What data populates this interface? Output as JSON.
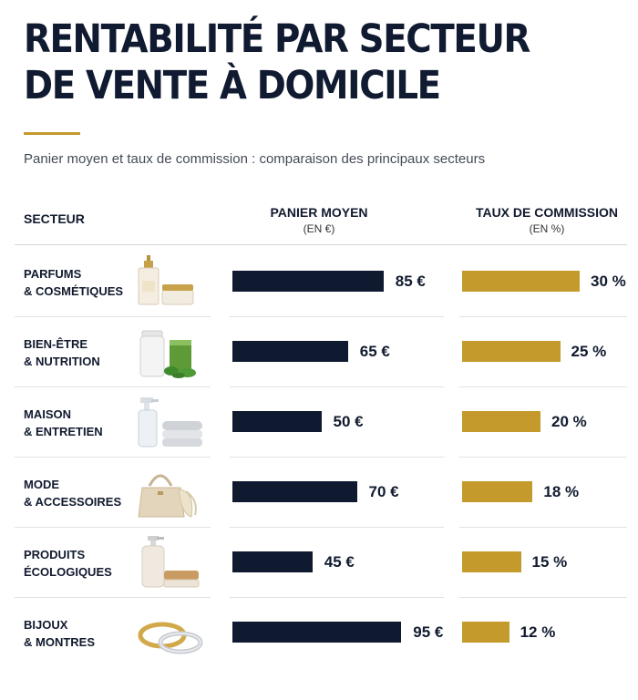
{
  "header": {
    "title_line1": "RENTABILITÉ PAR SECTEUR",
    "title_line2": "DE VENTE À DOMICILE",
    "subtitle": "Panier moyen et taux de commission : comparaison des principaux secteurs"
  },
  "columns": {
    "sector": "SECTEUR",
    "basket": "PANIER MOYEN",
    "basket_unit": "(EN €)",
    "commission": "TAUX DE COMMISSION",
    "commission_unit": "(EN %)"
  },
  "colors": {
    "navy": "#0f1a30",
    "gold": "#c49a2c"
  },
  "chart_data": {
    "type": "bar",
    "categories": [
      [
        "PARFUMS",
        "& COSMÉTIQUES"
      ],
      [
        "BIEN-ÊTRE",
        "& NUTRITION"
      ],
      [
        "MAISON",
        "& ENTRETIEN"
      ],
      [
        "MODE",
        "& ACCESSOIRES"
      ],
      [
        "PRODUITS",
        "ÉCOLOGIQUES"
      ],
      [
        "BIJOUX",
        "& MONTRES"
      ]
    ],
    "icons": [
      "perfume-icon",
      "supplement-icon",
      "cleaning-icon",
      "handbag-icon",
      "eco-soap-icon",
      "rings-icon"
    ],
    "series": [
      {
        "name": "PANIER MOYEN",
        "unit": "€",
        "values": [
          85,
          65,
          50,
          70,
          45,
          95
        ],
        "labels": [
          "85 €",
          "65 €",
          "50 €",
          "70 €",
          "45 €",
          "95 €"
        ]
      },
      {
        "name": "TAUX DE COMMISSION",
        "unit": "%",
        "values": [
          30,
          25,
          20,
          18,
          15,
          12
        ],
        "labels": [
          "30 %",
          "25 %",
          "20 %",
          "18 %",
          "15 %",
          "12 %"
        ]
      }
    ]
  }
}
